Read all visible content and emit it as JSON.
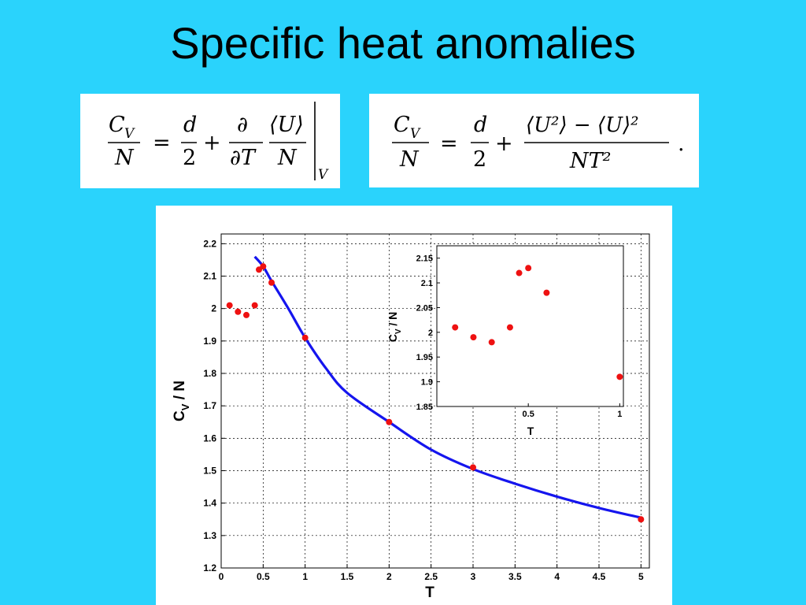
{
  "slide": {
    "title": "Specific heat anomalies"
  },
  "equations": {
    "eq1": {
      "lhs_num": "C",
      "lhs_num_sub": "V",
      "lhs_den": "N",
      "eq": "=",
      "half_num": "d",
      "half_den": "2",
      "plus": "+",
      "partial_num": "∂",
      "partial_den": "∂T",
      "avg_num": "⟨U⟩",
      "avg_den": "N",
      "eval_sub": "V"
    },
    "eq2": {
      "lhs_num": "C",
      "lhs_num_sub": "V",
      "lhs_den": "N",
      "eq": "=",
      "half_num": "d",
      "half_den": "2",
      "plus": "+",
      "fluct_num": "⟨U²⟩ − ⟨U⟩²",
      "fluct_den": "NT²",
      "period": "."
    }
  },
  "chart_data": [
    {
      "type": "scatter",
      "name": "main",
      "xlabel": "T",
      "ylabel_main": "C",
      "ylabel_sub": "V",
      "ylabel_rest": " / N",
      "xlim": [
        0,
        5.1
      ],
      "ylim": [
        1.2,
        2.23
      ],
      "grid": true,
      "xticks": [
        0,
        0.5,
        1,
        1.5,
        2,
        2.5,
        3,
        3.5,
        4,
        4.5,
        5
      ],
      "xtick_labels": [
        "0",
        "0.5",
        "1",
        "1.5",
        "2",
        "2.5",
        "3",
        "3.5",
        "4",
        "4.5",
        "5"
      ],
      "yticks": [
        1.2,
        1.3,
        1.4,
        1.5,
        1.6,
        1.7,
        1.8,
        1.9,
        2.0,
        2.1,
        2.2
      ],
      "ytick_labels": [
        "1.2",
        "1.3",
        "1.4",
        "1.5",
        "1.6",
        "1.7",
        "1.8",
        "1.9",
        "2",
        "2.1",
        "2.2"
      ],
      "points": {
        "x": [
          0.1,
          0.2,
          0.3,
          0.4,
          0.45,
          0.5,
          0.6,
          1.0,
          2.0,
          3.0,
          5.0
        ],
        "y": [
          2.01,
          1.99,
          1.98,
          2.01,
          2.12,
          2.13,
          2.08,
          1.91,
          1.65,
          1.51,
          1.35
        ],
        "color": "#ee1111"
      },
      "curve": {
        "x": [
          0.4,
          0.5,
          0.6,
          0.8,
          1.0,
          1.25,
          1.5,
          2.0,
          2.5,
          3.0,
          3.5,
          4.0,
          4.5,
          5.0
        ],
        "y": [
          2.16,
          2.13,
          2.085,
          2.0,
          1.91,
          1.815,
          1.74,
          1.65,
          1.565,
          1.505,
          1.46,
          1.42,
          1.385,
          1.355
        ],
        "color": "#1515ee"
      }
    },
    {
      "type": "scatter",
      "name": "inset",
      "xlabel": "T",
      "ylabel_main": "C",
      "ylabel_sub": "V",
      "ylabel_rest": " / N",
      "xlim": [
        0,
        1.02
      ],
      "ylim": [
        1.85,
        2.175
      ],
      "grid": false,
      "xticks": [
        0.5,
        1
      ],
      "xtick_labels": [
        "0.5",
        "1"
      ],
      "yticks": [
        1.85,
        1.9,
        1.95,
        2.0,
        2.05,
        2.1,
        2.15
      ],
      "ytick_labels": [
        "1.85",
        "1.9",
        "1.95",
        "2",
        "2.05",
        "2.1",
        "2.15"
      ],
      "points": {
        "x": [
          0.1,
          0.2,
          0.3,
          0.4,
          0.45,
          0.5,
          0.6,
          1.0
        ],
        "y": [
          2.01,
          1.99,
          1.98,
          2.01,
          2.12,
          2.13,
          2.08,
          1.91
        ],
        "color": "#ee1111"
      }
    }
  ]
}
